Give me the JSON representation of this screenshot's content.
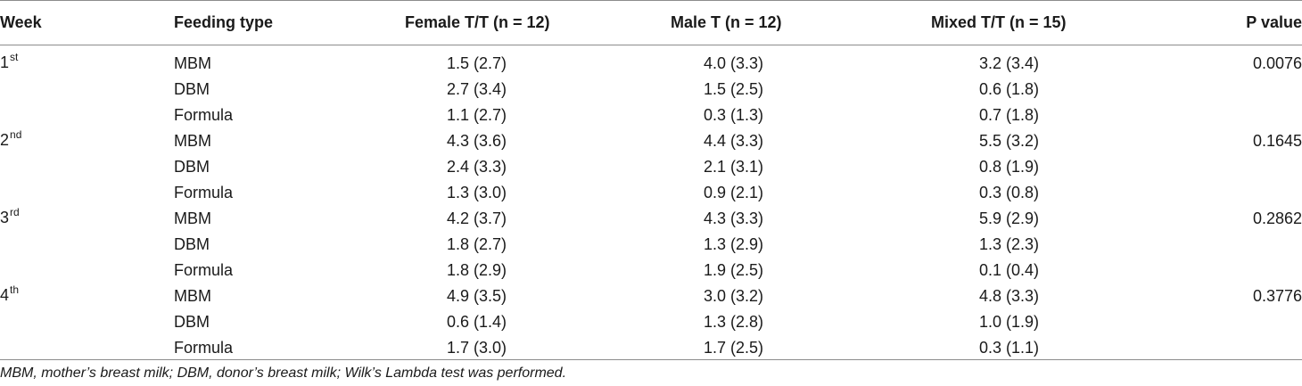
{
  "table": {
    "headers": {
      "week": "Week",
      "feeding_type": "Feeding type",
      "female": "Female T/T (n = 12)",
      "male": "Male T (n = 12)",
      "mixed": "Mixed T/T (n = 15)",
      "p_value": "P value"
    },
    "rows": [
      {
        "week": "1",
        "week_sup": "st",
        "feeding": "MBM",
        "female": "1.5 (2.7)",
        "male": "4.0 (3.3)",
        "mixed": "3.2 (3.4)",
        "p": "0.0076"
      },
      {
        "week": "",
        "week_sup": "",
        "feeding": "DBM",
        "female": "2.7 (3.4)",
        "male": "1.5 (2.5)",
        "mixed": "0.6 (1.8)",
        "p": ""
      },
      {
        "week": "",
        "week_sup": "",
        "feeding": "Formula",
        "female": "1.1 (2.7)",
        "male": "0.3 (1.3)",
        "mixed": "0.7 (1.8)",
        "p": ""
      },
      {
        "week": "2",
        "week_sup": "nd",
        "feeding": "MBM",
        "female": "4.3 (3.6)",
        "male": "4.4 (3.3)",
        "mixed": "5.5 (3.2)",
        "p": "0.1645"
      },
      {
        "week": "",
        "week_sup": "",
        "feeding": "DBM",
        "female": "2.4 (3.3)",
        "male": "2.1 (3.1)",
        "mixed": "0.8 (1.9)",
        "p": ""
      },
      {
        "week": "",
        "week_sup": "",
        "feeding": "Formula",
        "female": "1.3 (3.0)",
        "male": "0.9 (2.1)",
        "mixed": "0.3 (0.8)",
        "p": ""
      },
      {
        "week": "3",
        "week_sup": "rd",
        "feeding": "MBM",
        "female": "4.2 (3.7)",
        "male": "4.3 (3.3)",
        "mixed": "5.9 (2.9)",
        "p": "0.2862"
      },
      {
        "week": "",
        "week_sup": "",
        "feeding": "DBM",
        "female": "1.8 (2.7)",
        "male": "1.3 (2.9)",
        "mixed": "1.3 (2.3)",
        "p": ""
      },
      {
        "week": "",
        "week_sup": "",
        "feeding": "Formula",
        "female": "1.8 (2.9)",
        "male": "1.9 (2.5)",
        "mixed": "0.1 (0.4)",
        "p": ""
      },
      {
        "week": "4",
        "week_sup": "th",
        "feeding": "MBM",
        "female": "4.9 (3.5)",
        "male": "3.0 (3.2)",
        "mixed": "4.8 (3.3)",
        "p": "0.3776"
      },
      {
        "week": "",
        "week_sup": "",
        "feeding": "DBM",
        "female": "0.6 (1.4)",
        "male": "1.3 (2.8)",
        "mixed": "1.0 (1.9)",
        "p": ""
      },
      {
        "week": "",
        "week_sup": "",
        "feeding": "Formula",
        "female": "1.7 (3.0)",
        "male": "1.7 (2.5)",
        "mixed": "0.3 (1.1)",
        "p": ""
      }
    ]
  },
  "footnote": "MBM, mother’s breast milk; DBM, donor’s breast milk; Wilk’s Lambda test was performed.",
  "colors": {
    "rule": "#8c8c8c",
    "text": "#1a1a1a"
  }
}
